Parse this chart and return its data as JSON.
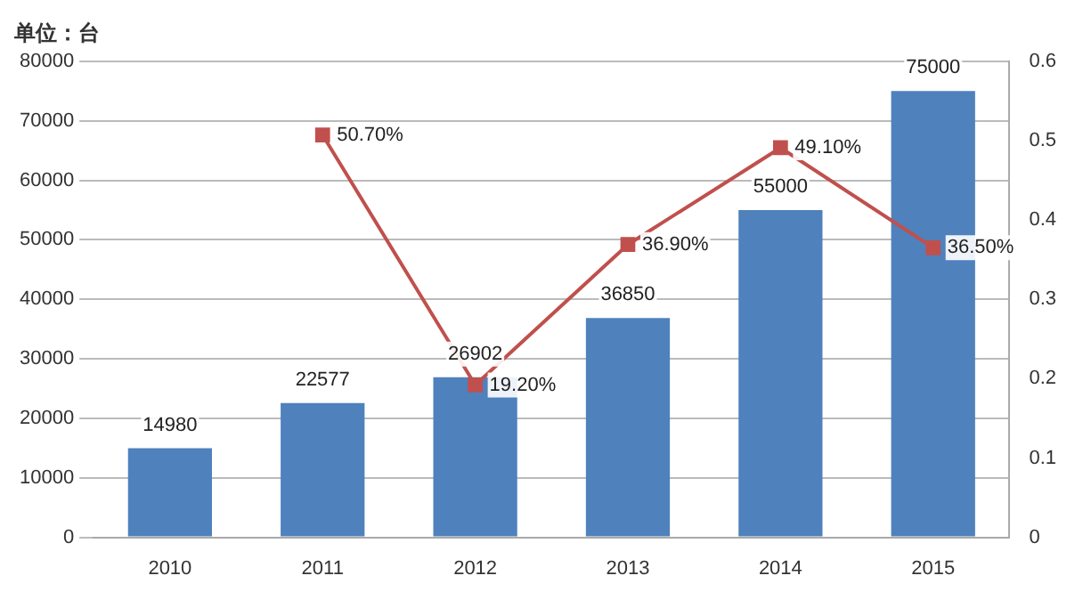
{
  "chart_data": {
    "type": "bar",
    "ylabel": "单位：台",
    "categories": [
      "2010",
      "2011",
      "2012",
      "2013",
      "2014",
      "2015"
    ],
    "series": [
      {
        "color": "#4f81bd",
        "values": [
          14980,
          22577,
          26902,
          36850,
          55000,
          75000
        ],
        "value_labels": [
          "14980",
          "22577",
          "26902",
          "36850",
          "55000",
          "75000"
        ]
      },
      {
        "type": "line",
        "axis": "y2",
        "color": "#c0504d",
        "marker": "square",
        "values": [
          null,
          0.507,
          0.192,
          0.369,
          0.491,
          0.365
        ],
        "value_labels": [
          null,
          "50.70%",
          "19.20%",
          "36.90%",
          "49.10%",
          "36.50%"
        ]
      }
    ],
    "ylim": [
      0,
      80000
    ],
    "yticks": [
      0,
      10000,
      20000,
      30000,
      40000,
      50000,
      60000,
      70000,
      80000
    ],
    "y2lim": [
      0,
      0.6
    ],
    "y2ticks": [
      0,
      0.1,
      0.2,
      0.3,
      0.4,
      0.5,
      0.6
    ],
    "grid": "y",
    "legend": false
  }
}
